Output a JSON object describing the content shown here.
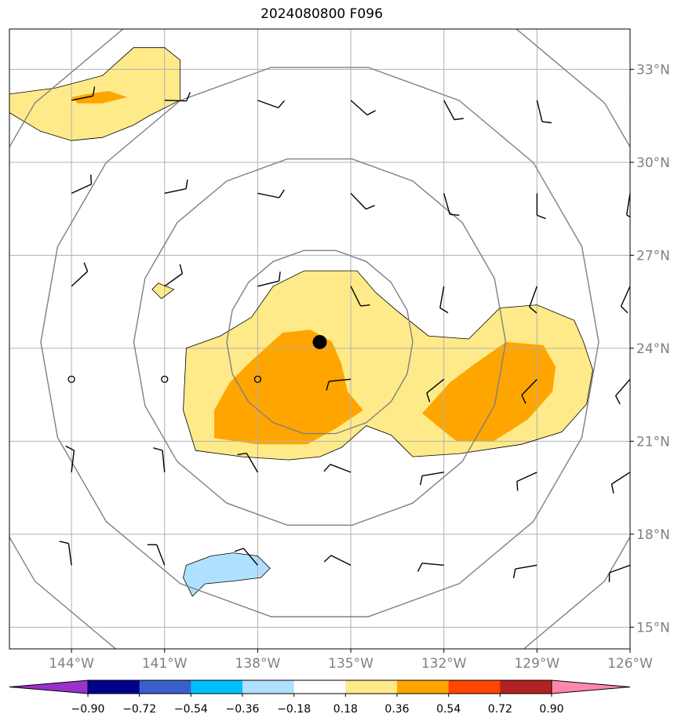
{
  "chart_data": {
    "type": "heatmap",
    "title": "2024080800 F096",
    "map": {
      "lon_range": [
        -146,
        -126
      ],
      "lat_range": [
        14.3,
        34.3
      ],
      "x_ticks": [
        -144,
        -141,
        -138,
        -135,
        -132,
        -129,
        -126
      ],
      "x_tick_labels": [
        "144°W",
        "141°W",
        "138°W",
        "135°W",
        "132°W",
        "129°W",
        "126°W"
      ],
      "y_ticks": [
        15,
        18,
        21,
        24,
        27,
        30,
        33
      ],
      "y_tick_labels": [
        "15°N",
        "18°N",
        "21°N",
        "24°N",
        "27°N",
        "30°N",
        "33°N"
      ],
      "grid": true,
      "grid_color": "#b0b0b0"
    },
    "center": {
      "lon": -136,
      "lat": 24.2
    },
    "range_rings_deg": [
      3,
      6,
      9,
      12
    ],
    "colorbar": {
      "ticks": [
        -0.9,
        -0.72,
        -0.54,
        -0.36,
        -0.18,
        0.18,
        0.36,
        0.54,
        0.72,
        0.9
      ],
      "tick_labels": [
        "−0.90",
        "−0.72",
        "−0.54",
        "−0.36",
        "−0.18",
        "0.18",
        "0.36",
        "0.54",
        "0.72",
        "0.90"
      ],
      "colors": [
        "#9932cc",
        "#00008b",
        "#3a5fcd",
        "#00bfff",
        "#b0e0ff",
        "#ffffff",
        "#ffea8a",
        "#ffa500",
        "#ff4500",
        "#b22222",
        "#ff88aa"
      ]
    },
    "filled_regions": [
      {
        "level": 0.18,
        "color": "#ffea8a",
        "points": [
          [
            -146,
            32.2
          ],
          [
            -144.5,
            32.4
          ],
          [
            -143,
            32.8
          ],
          [
            -142,
            33.7
          ],
          [
            -141,
            33.7
          ],
          [
            -140.5,
            33.3
          ],
          [
            -140.5,
            32
          ],
          [
            -141.5,
            31.5
          ],
          [
            -142,
            31.2
          ],
          [
            -143,
            30.8
          ],
          [
            -144,
            30.7
          ],
          [
            -145,
            31
          ],
          [
            -146,
            31.6
          ]
        ]
      },
      {
        "level": 0.36,
        "color": "#ffa500",
        "points": [
          [
            -144,
            32.1
          ],
          [
            -143.5,
            32.2
          ],
          [
            -142.8,
            32.3
          ],
          [
            -142.2,
            32.1
          ],
          [
            -143,
            31.9
          ],
          [
            -143.8,
            31.9
          ]
        ]
      },
      {
        "level": 0.18,
        "color": "#ffea8a",
        "points": [
          [
            -141.2,
            26.1
          ],
          [
            -140.7,
            25.9
          ],
          [
            -141.1,
            25.6
          ],
          [
            -141.4,
            25.9
          ]
        ]
      },
      {
        "level": 0.18,
        "color": "#ffea8a",
        "points": [
          [
            -140.3,
            24
          ],
          [
            -139.2,
            24.4
          ],
          [
            -138.2,
            25
          ],
          [
            -137.5,
            26
          ],
          [
            -136.5,
            26.5
          ],
          [
            -134.8,
            26.5
          ],
          [
            -134.2,
            25.8
          ],
          [
            -133.5,
            25.2
          ],
          [
            -132.5,
            24.4
          ],
          [
            -131.2,
            24.3
          ],
          [
            -130.2,
            25.3
          ],
          [
            -129,
            25.4
          ],
          [
            -127.8,
            24.9
          ],
          [
            -127.5,
            24.2
          ],
          [
            -127.2,
            23.3
          ],
          [
            -127.4,
            22.2
          ],
          [
            -128.2,
            21.3
          ],
          [
            -129.5,
            20.9
          ],
          [
            -131.5,
            20.6
          ],
          [
            -133,
            20.5
          ],
          [
            -133.7,
            21.2
          ],
          [
            -134.5,
            21.5
          ],
          [
            -135.3,
            20.8
          ],
          [
            -136,
            20.5
          ],
          [
            -137,
            20.4
          ],
          [
            -138.5,
            20.5
          ],
          [
            -140,
            20.7
          ],
          [
            -140.4,
            22
          ]
        ]
      },
      {
        "level": 0.36,
        "color": "#ffa500",
        "points": [
          [
            -138.9,
            22.9
          ],
          [
            -138.2,
            23.6
          ],
          [
            -137.2,
            24.5
          ],
          [
            -136.3,
            24.6
          ],
          [
            -135.6,
            24.2
          ],
          [
            -135.3,
            23.5
          ],
          [
            -135.1,
            22.6
          ],
          [
            -134.6,
            22
          ],
          [
            -135.5,
            21.4
          ],
          [
            -136.4,
            20.9
          ],
          [
            -138,
            20.9
          ],
          [
            -139.4,
            21.1
          ],
          [
            -139.4,
            22
          ]
        ]
      },
      {
        "level": 0.36,
        "color": "#ffa500",
        "points": [
          [
            -132.7,
            21.9
          ],
          [
            -131.8,
            22.9
          ],
          [
            -131,
            23.5
          ],
          [
            -130,
            24.2
          ],
          [
            -128.8,
            24.1
          ],
          [
            -128.4,
            23.4
          ],
          [
            -128.5,
            22.6
          ],
          [
            -129.3,
            21.7
          ],
          [
            -130.4,
            21
          ],
          [
            -131.6,
            21
          ]
        ]
      },
      {
        "level": -0.18,
        "color": "#b0e0ff",
        "points": [
          [
            -140.3,
            17
          ],
          [
            -139.5,
            17.3
          ],
          [
            -138.8,
            17.4
          ],
          [
            -138,
            17.3
          ],
          [
            -137.6,
            16.9
          ],
          [
            -137.9,
            16.6
          ],
          [
            -138.7,
            16.5
          ],
          [
            -139.7,
            16.4
          ],
          [
            -140.1,
            16
          ],
          [
            -140.4,
            16.6
          ]
        ]
      }
    ],
    "wind_barbs_lon": [
      -144,
      -141,
      -138,
      -135,
      -132,
      -129,
      -126
    ],
    "wind_barbs_lat": [
      17,
      20,
      23,
      26,
      29,
      32
    ]
  }
}
